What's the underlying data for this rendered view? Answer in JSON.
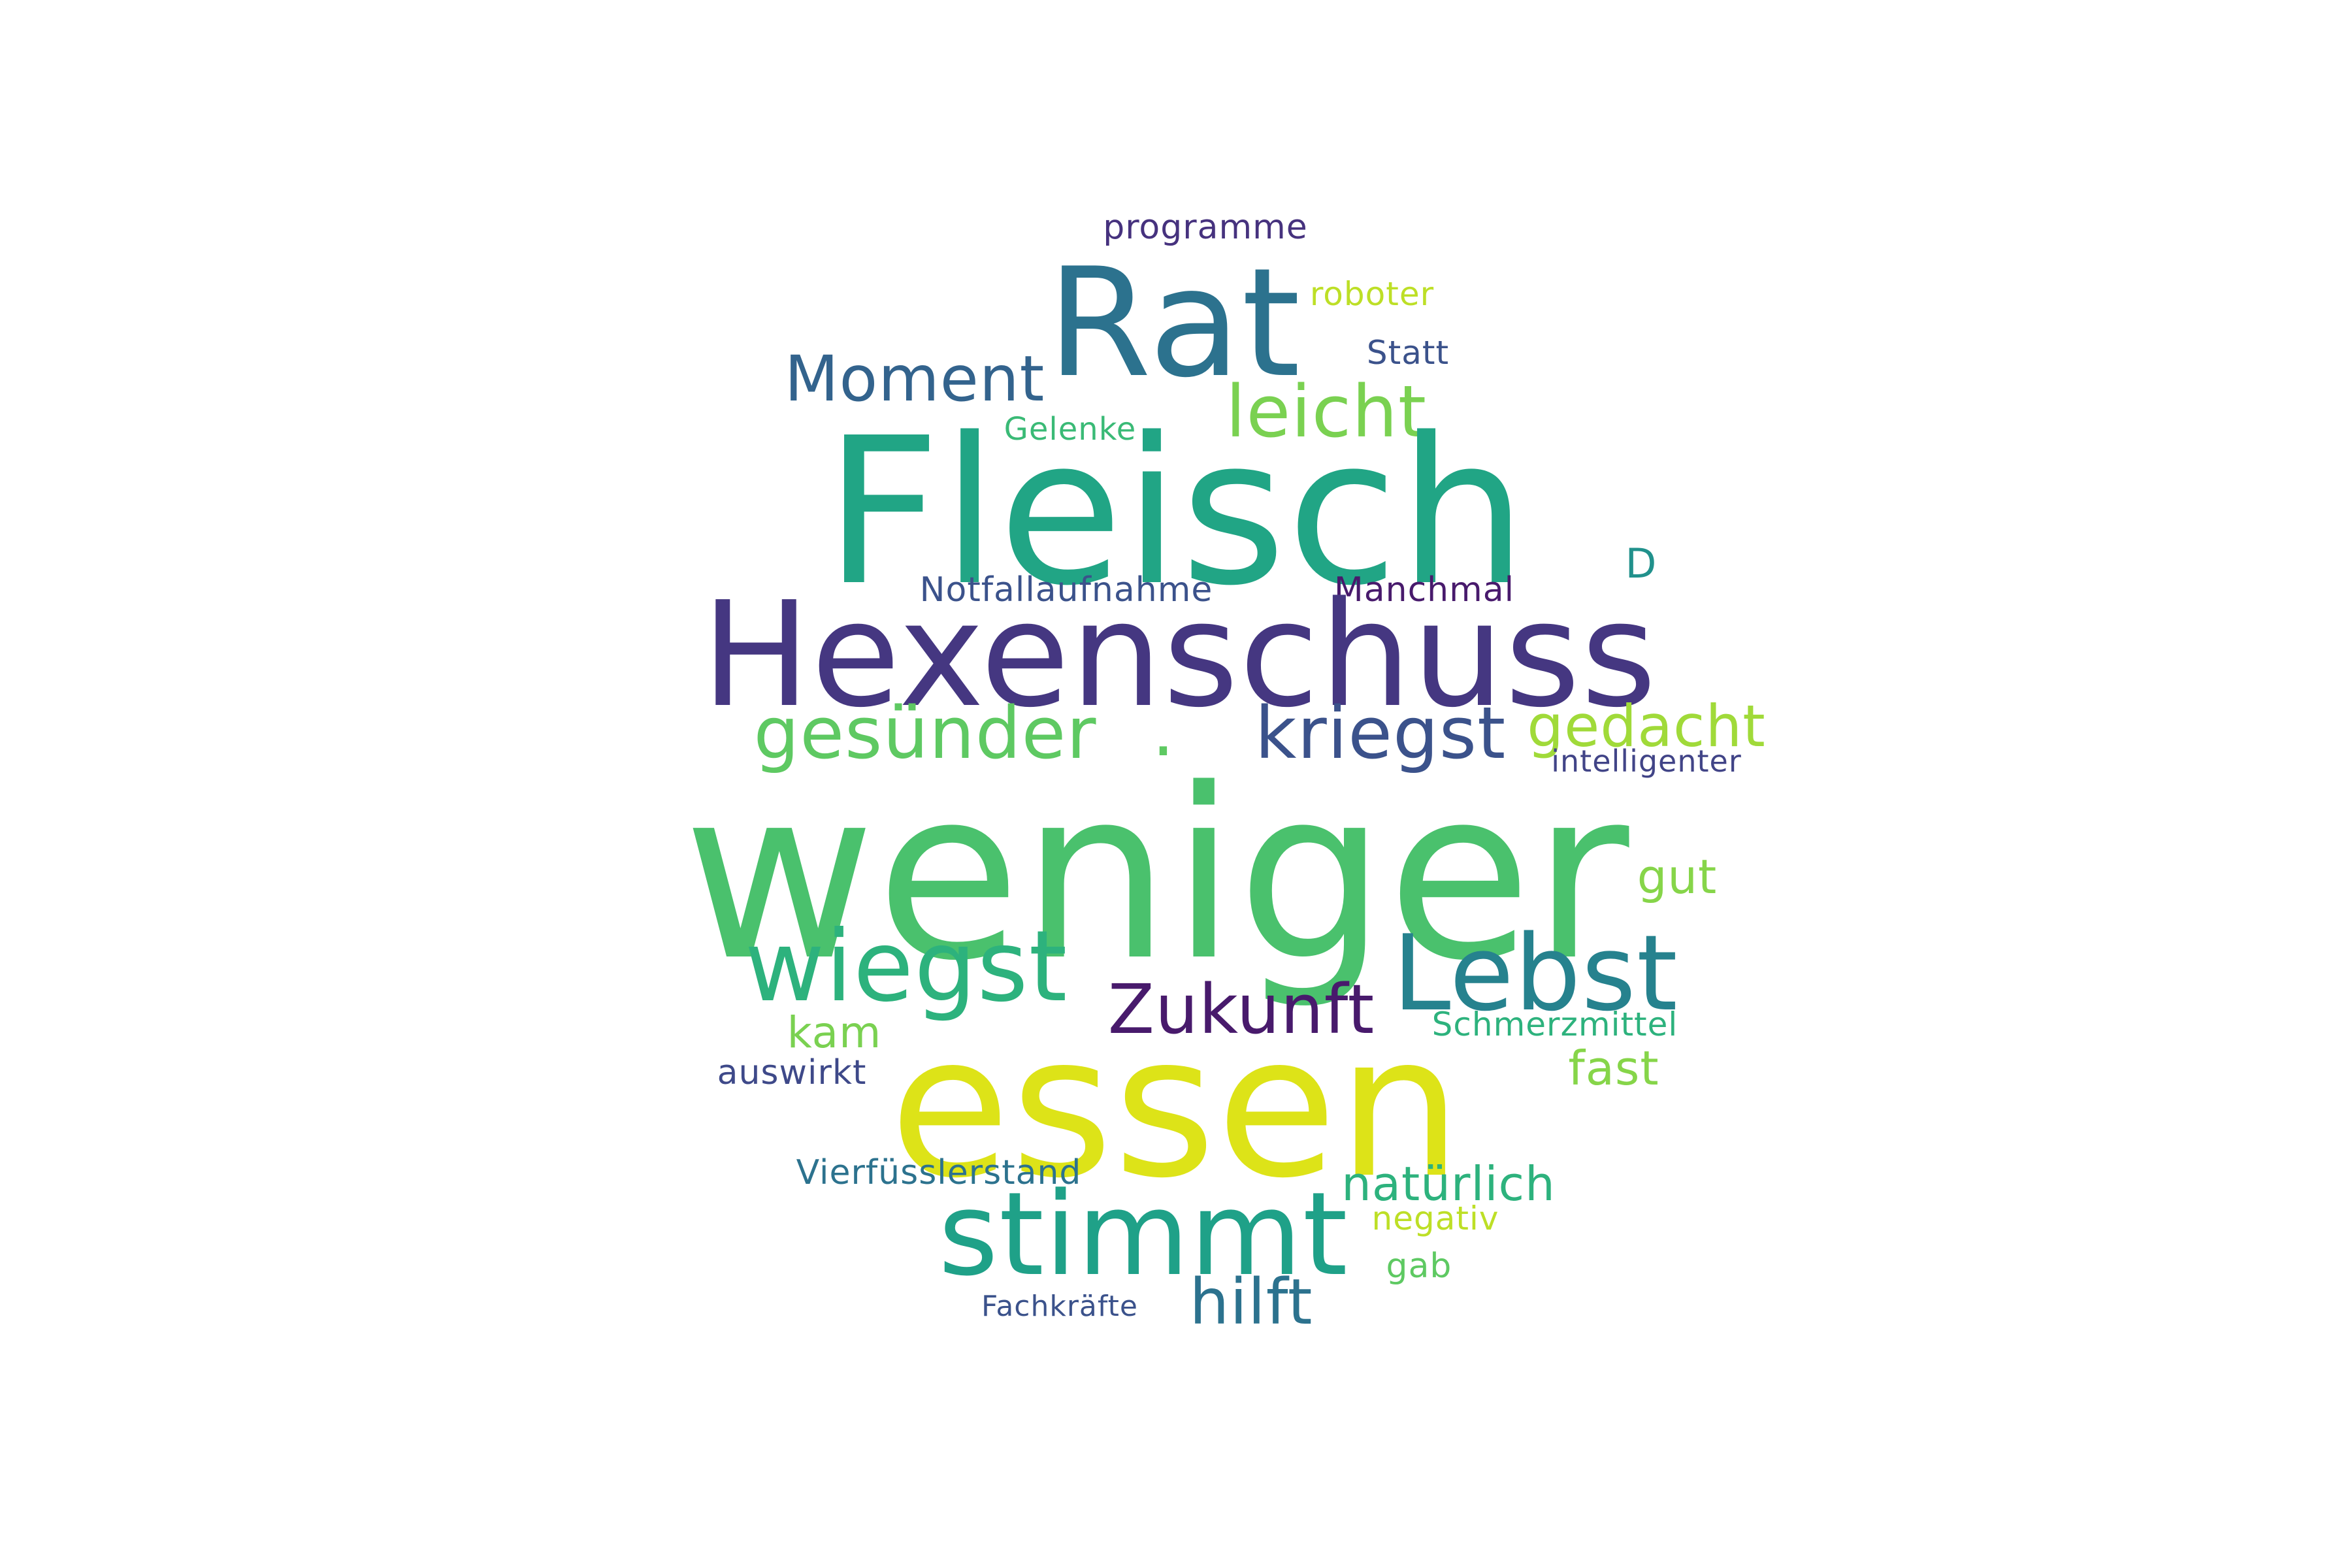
{
  "words": [
    {
      "text": "programme",
      "color": "#46327e"
    },
    {
      "text": "roboter",
      "color": "#bddf26"
    },
    {
      "text": "Rat",
      "color": "#2c728e"
    },
    {
      "text": "Statt",
      "color": "#3b528b"
    },
    {
      "text": "Moment",
      "color": "#33638d"
    },
    {
      "text": "leicht",
      "color": "#7ad151"
    },
    {
      "text": "Gelenke",
      "color": "#3aba76"
    },
    {
      "text": "Fleisch",
      "color": "#21a585"
    },
    {
      "text": "D",
      "color": "#21918c"
    },
    {
      "text": "Notfallaufnahme",
      "color": "#3b528b"
    },
    {
      "text": "Manchmal",
      "color": "#481a6c"
    },
    {
      "text": "Hexenschuss",
      "color": "#453781"
    },
    {
      "text": "gesünder",
      "color": "#5ec962"
    },
    {
      "text": ".",
      "color": "#5ec962"
    },
    {
      "text": "kriegst",
      "color": "#3b528b"
    },
    {
      "text": "gedacht",
      "color": "#a0da39"
    },
    {
      "text": "intelligenter",
      "color": "#414487"
    },
    {
      "text": "weniger",
      "color": "#4ac16d"
    },
    {
      "text": "gut",
      "color": "#86d549"
    },
    {
      "text": "wiegst",
      "color": "#2db27d"
    },
    {
      "text": "Lebst",
      "color": "#26828e"
    },
    {
      "text": "Zukunft",
      "color": "#481a6c"
    },
    {
      "text": "kam",
      "color": "#7ad151"
    },
    {
      "text": "Schmerzmittel",
      "color": "#2db27d"
    },
    {
      "text": "auswirkt",
      "color": "#3e4989"
    },
    {
      "text": "essen",
      "color": "#dde318"
    },
    {
      "text": "fast",
      "color": "#86d549"
    },
    {
      "text": "Vierfüsslerstand",
      "color": "#2c728e"
    },
    {
      "text": "natürlich",
      "color": "#2db27d"
    },
    {
      "text": "stimmt",
      "color": "#1fa188"
    },
    {
      "text": "negativ",
      "color": "#bddf26"
    },
    {
      "text": "gab",
      "color": "#5ec962"
    },
    {
      "text": "hilft",
      "color": "#2c728e"
    },
    {
      "text": "Fachkräfte",
      "color": "#3b528b"
    }
  ]
}
